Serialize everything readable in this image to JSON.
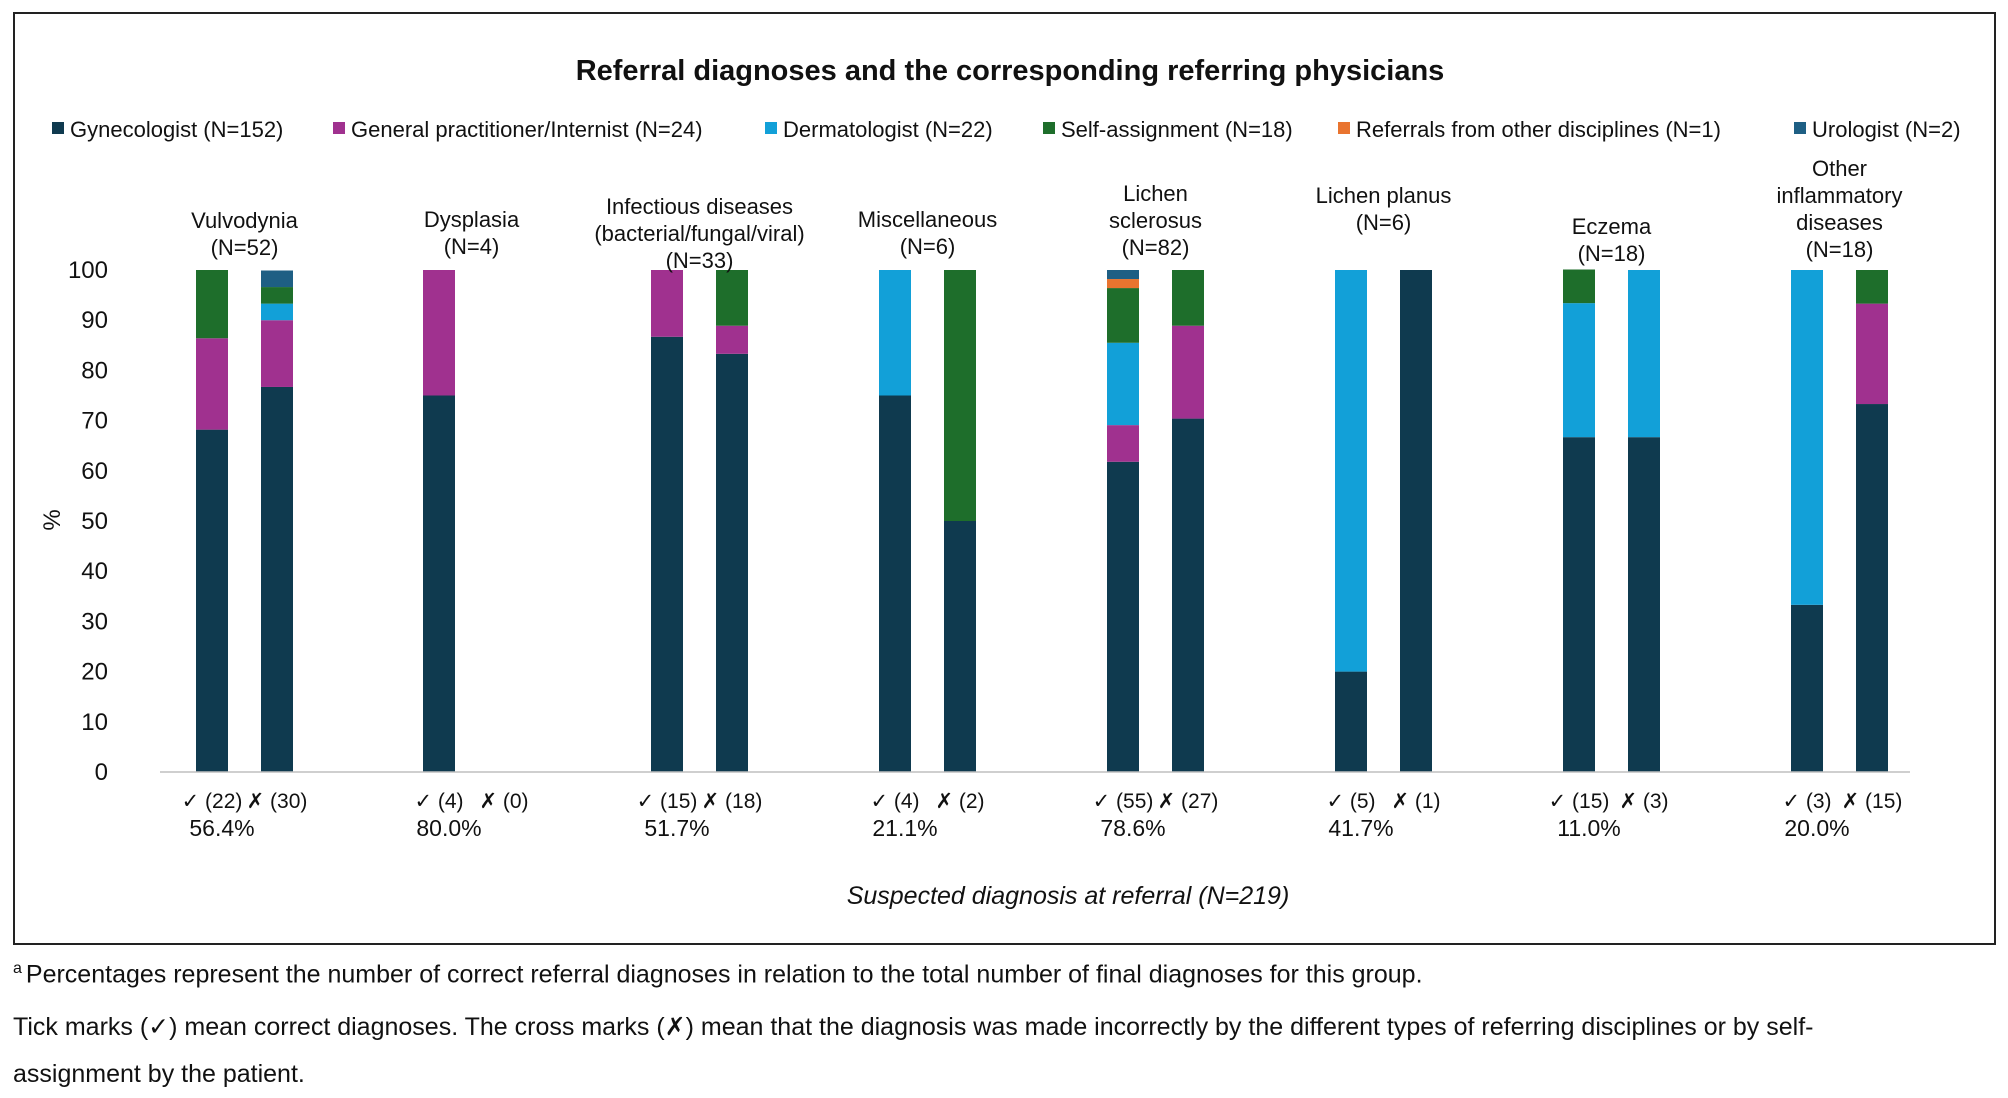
{
  "chart_data": {
    "type": "bar",
    "stacked": true,
    "title": "Referral diagnoses and the corresponding referring physicians",
    "ylabel": "%",
    "xlabel": "Suspected diagnosis at referral (N=219)",
    "ylim": [
      0,
      100
    ],
    "yticks": [
      "0",
      "10",
      "20",
      "30",
      "40",
      "50",
      "60",
      "70",
      "80",
      "90",
      "100"
    ],
    "legend_position": "top",
    "series": [
      {
        "name": "Gynecologist (N=152)",
        "color": "#0f3a4f"
      },
      {
        "name": "General practitioner/Internist (N=24)",
        "color": "#a0318f"
      },
      {
        "name": "Dermatologist (N=22)",
        "color": "#12a0d8"
      },
      {
        "name": "Self-assignment (N=18)",
        "color": "#1e6e2b"
      },
      {
        "name": "Referrals from other disciplines (N=1)",
        "color": "#e9742f"
      },
      {
        "name": "Urologist (N=2)",
        "color": "#1e5f84"
      }
    ],
    "groups": [
      {
        "label": [
          "Vulvodynia",
          "(N=52)"
        ],
        "correct_label": "✓ (22)",
        "incorrect_label": "✗ (30)",
        "percent": "56.4%",
        "correct_bar": {
          "Gynecologist": 68.2,
          "General practitioner/Internist": 18.2,
          "Dermatologist": 0,
          "Self-assignment": 13.6,
          "Referrals from other disciplines": 0,
          "Urologist": 0
        },
        "incorrect_bar": {
          "Gynecologist": 76.7,
          "General practitioner/Internist": 13.3,
          "Dermatologist": 3.3,
          "Self-assignment": 3.3,
          "Referrals from other disciplines": 0,
          "Urologist": 3.3
        }
      },
      {
        "label": [
          "Dysplasia",
          "(N=4)"
        ],
        "correct_label": "✓ (4)",
        "incorrect_label": "✗ (0)",
        "percent": "80.0%",
        "correct_bar": {
          "Gynecologist": 75,
          "General practitioner/Internist": 25,
          "Dermatologist": 0,
          "Self-assignment": 0,
          "Referrals from other disciplines": 0,
          "Urologist": 0
        },
        "incorrect_bar": {
          "Gynecologist": 0,
          "General practitioner/Internist": 0,
          "Dermatologist": 0,
          "Self-assignment": 0,
          "Referrals from other disciplines": 0,
          "Urologist": 0
        }
      },
      {
        "label": [
          "Infectious diseases",
          "(bacterial/fungal/viral)",
          "(N=33)"
        ],
        "correct_label": "✓ (15)",
        "incorrect_label": "✗ (18)",
        "percent": "51.7%",
        "correct_bar": {
          "Gynecologist": 86.7,
          "General practitioner/Internist": 13.3,
          "Dermatologist": 0,
          "Self-assignment": 0,
          "Referrals from other disciplines": 0,
          "Urologist": 0
        },
        "incorrect_bar": {
          "Gynecologist": 83.3,
          "General practitioner/Internist": 5.6,
          "Dermatologist": 0,
          "Self-assignment": 11.1,
          "Referrals from other disciplines": 0,
          "Urologist": 0
        }
      },
      {
        "label": [
          "Miscellaneous",
          "(N=6)"
        ],
        "correct_label": "✓ (4)",
        "incorrect_label": "✗ (2)",
        "percent": "21.1%",
        "correct_bar": {
          "Gynecologist": 75,
          "General practitioner/Internist": 0,
          "Dermatologist": 25,
          "Self-assignment": 0,
          "Referrals from other disciplines": 0,
          "Urologist": 0
        },
        "incorrect_bar": {
          "Gynecologist": 50,
          "General practitioner/Internist": 0,
          "Dermatologist": 0,
          "Self-assignment": 50,
          "Referrals from other disciplines": 0,
          "Urologist": 0
        }
      },
      {
        "label": [
          "Lichen",
          "sclerosus",
          "(N=82)"
        ],
        "correct_label": "✓ (55)",
        "incorrect_label": "✗ (27)",
        "percent": "78.6%",
        "correct_bar": {
          "Gynecologist": 61.8,
          "General practitioner/Internist": 7.3,
          "Dermatologist": 16.4,
          "Self-assignment": 10.9,
          "Referrals from other disciplines": 1.8,
          "Urologist": 1.8
        },
        "incorrect_bar": {
          "Gynecologist": 70.4,
          "General practitioner/Internist": 18.5,
          "Dermatologist": 0,
          "Self-assignment": 11.1,
          "Referrals from other disciplines": 0,
          "Urologist": 0
        }
      },
      {
        "label": [
          "Lichen planus",
          "(N=6)"
        ],
        "correct_label": "✓ (5)",
        "incorrect_label": "✗ (1)",
        "percent": "41.7%",
        "correct_bar": {
          "Gynecologist": 20,
          "General practitioner/Internist": 0,
          "Dermatologist": 80,
          "Self-assignment": 0,
          "Referrals from other disciplines": 0,
          "Urologist": 0
        },
        "incorrect_bar": {
          "Gynecologist": 100,
          "General practitioner/Internist": 0,
          "Dermatologist": 0,
          "Self-assignment": 0,
          "Referrals from other disciplines": 0,
          "Urologist": 0
        }
      },
      {
        "label": [
          "Eczema",
          "(N=18)"
        ],
        "correct_label": "✓ (15)",
        "incorrect_label": "✗ (3)",
        "percent": "11.0%",
        "correct_bar": {
          "Gynecologist": 66.7,
          "General practitioner/Internist": 0,
          "Dermatologist": 26.7,
          "Self-assignment": 6.7,
          "Referrals from other disciplines": 0,
          "Urologist": 0
        },
        "incorrect_bar": {
          "Gynecologist": 66.7,
          "General practitioner/Internist": 0,
          "Dermatologist": 33.3,
          "Self-assignment": 0,
          "Referrals from other disciplines": 0,
          "Urologist": 0
        }
      },
      {
        "label": [
          "Other",
          "inflammatory",
          "diseases",
          "(N=18)"
        ],
        "correct_label": "✓ (3)",
        "incorrect_label": "✗ (15)",
        "percent": "20.0%",
        "correct_bar": {
          "Gynecologist": 33.3,
          "General practitioner/Internist": 0,
          "Dermatologist": 66.7,
          "Self-assignment": 0,
          "Referrals from other disciplines": 0,
          "Urologist": 0
        },
        "incorrect_bar": {
          "Gynecologist": 73.3,
          "General practitioner/Internist": 20,
          "Dermatologist": 0,
          "Self-assignment": 6.7,
          "Referrals from other disciplines": 0,
          "Urologist": 0
        }
      }
    ]
  },
  "footnotes": {
    "note_a_marker": "a",
    "note_a": "Percentages represent the number of correct referral diagnoses in relation to the total number of final diagnoses for this group.",
    "note_b_line1": "Tick marks (✓) mean correct diagnoses. The cross marks (✗) mean that the diagnosis was made incorrectly by the different types of referring disciplines or by self-",
    "note_b_line2": "assignment by the patient."
  }
}
